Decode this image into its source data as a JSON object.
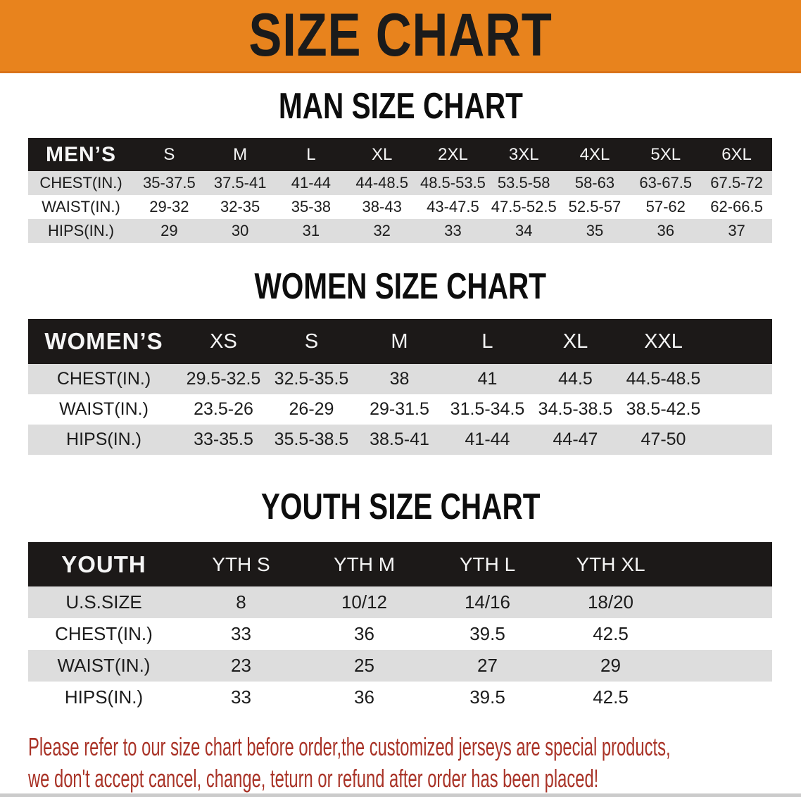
{
  "banner": {
    "title": "SIZE CHART"
  },
  "sections": {
    "man": {
      "heading": "MAN SIZE CHART"
    },
    "women": {
      "heading": "WOMEN SIZE CHART"
    },
    "youth": {
      "heading": "YOUTH SIZE CHART"
    }
  },
  "men_table": {
    "header": [
      "MEN’S",
      "S",
      "M",
      "L",
      "XL",
      "2XL",
      "3XL",
      "4XL",
      "5XL",
      "6XL"
    ],
    "rows": [
      [
        "CHEST(IN.)",
        "35-37.5",
        "37.5-41",
        "41-44",
        "44-48.5",
        "48.5-53.5",
        "53.5-58",
        "58-63",
        "63-67.5",
        "67.5-72"
      ],
      [
        "WAIST(IN.)",
        "29-32",
        "32-35",
        "35-38",
        "38-43",
        "43-47.5",
        "47.5-52.5",
        "52.5-57",
        "57-62",
        "62-66.5"
      ],
      [
        "HIPS(IN.)",
        "29",
        "30",
        "31",
        "32",
        "33",
        "34",
        "35",
        "36",
        "37"
      ]
    ]
  },
  "women_table": {
    "header": [
      "WOMEN’S",
      "XS",
      "S",
      "M",
      "L",
      "XL",
      "XXL"
    ],
    "rows": [
      [
        "CHEST(IN.)",
        "29.5-32.5",
        "32.5-35.5",
        "38",
        "41",
        "44.5",
        "44.5-48.5"
      ],
      [
        "WAIST(IN.)",
        "23.5-26",
        "26-29",
        "29-31.5",
        "31.5-34.5",
        "34.5-38.5",
        "38.5-42.5"
      ],
      [
        "HIPS(IN.)",
        "33-35.5",
        "35.5-38.5",
        "38.5-41",
        "41-44",
        "44-47",
        "47-50"
      ]
    ]
  },
  "youth_table": {
    "header": [
      "YOUTH",
      "YTH S",
      "YTH M",
      "YTH L",
      "YTH XL"
    ],
    "rows": [
      [
        "U.S.SIZE",
        "8",
        "10/12",
        "14/16",
        "18/20"
      ],
      [
        "CHEST(IN.)",
        "33",
        "36",
        "39.5",
        "42.5"
      ],
      [
        "WAIST(IN.)",
        "23",
        "25",
        "27",
        "29"
      ],
      [
        "HIPS(IN.)",
        "33",
        "36",
        "39.5",
        "42.5"
      ]
    ]
  },
  "footer_note": {
    "line1": "Please refer to our size chart before order,the customized jerseys are special products,",
    "line2": "we don't accept cancel, change, teturn or refund after order has been placed!"
  },
  "colors": {
    "banner_orange": "#E8831D",
    "table_header_black": "#1c1918",
    "stripe_gray": "#DDDDDD",
    "footer_red": "#A93327"
  }
}
